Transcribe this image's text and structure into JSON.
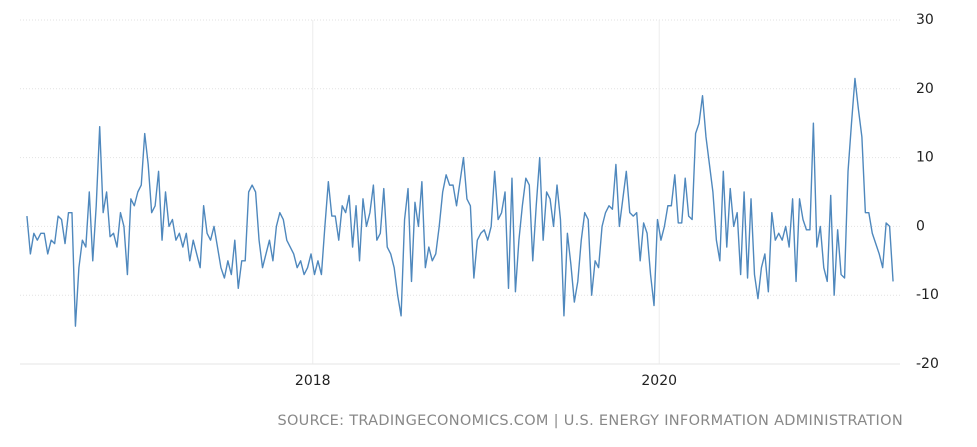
{
  "chart_data": {
    "type": "line",
    "color": "#4f88bd",
    "x": [
      2016.35,
      2016.37,
      2016.39,
      2016.41,
      2016.43,
      2016.45,
      2016.47,
      2016.49,
      2016.51,
      2016.53,
      2016.55,
      2016.57,
      2016.59,
      2016.61,
      2016.63,
      2016.65,
      2016.67,
      2016.69,
      2016.71,
      2016.73,
      2016.75,
      2016.77,
      2016.79,
      2016.81,
      2016.83,
      2016.85,
      2016.87,
      2016.89,
      2016.91,
      2016.93,
      2016.95,
      2016.97,
      2016.99,
      2017.01,
      2017.03,
      2017.05,
      2017.07,
      2017.09,
      2017.11,
      2017.13,
      2017.15,
      2017.17,
      2017.19,
      2017.21,
      2017.23,
      2017.25,
      2017.27,
      2017.29,
      2017.31,
      2017.33,
      2017.35,
      2017.37,
      2017.39,
      2017.41,
      2017.43,
      2017.45,
      2017.47,
      2017.49,
      2017.51,
      2017.53,
      2017.55,
      2017.57,
      2017.59,
      2017.61,
      2017.63,
      2017.65,
      2017.67,
      2017.69,
      2017.71,
      2017.73,
      2017.75,
      2017.77,
      2017.79,
      2017.81,
      2017.83,
      2017.85,
      2017.87,
      2017.89,
      2017.91,
      2017.93,
      2017.95,
      2017.97,
      2017.99,
      2018.01,
      2018.03,
      2018.05,
      2018.07,
      2018.09,
      2018.11,
      2018.13,
      2018.15,
      2018.17,
      2018.19,
      2018.21,
      2018.23,
      2018.25,
      2018.27,
      2018.29,
      2018.31,
      2018.33,
      2018.35,
      2018.37,
      2018.39,
      2018.41,
      2018.43,
      2018.45,
      2018.47,
      2018.49,
      2018.51,
      2018.53,
      2018.55,
      2018.57,
      2018.59,
      2018.61,
      2018.63,
      2018.65,
      2018.67,
      2018.69,
      2018.71,
      2018.73,
      2018.75,
      2018.77,
      2018.79,
      2018.81,
      2018.83,
      2018.85,
      2018.87,
      2018.89,
      2018.91,
      2018.93,
      2018.95,
      2018.97,
      2018.99,
      2019.01,
      2019.03,
      2019.05,
      2019.07,
      2019.09,
      2019.11,
      2019.13,
      2019.15,
      2019.17,
      2019.19,
      2019.21,
      2019.23,
      2019.25,
      2019.27,
      2019.29,
      2019.31,
      2019.33,
      2019.35,
      2019.37,
      2019.39,
      2019.41,
      2019.43,
      2019.45,
      2019.47,
      2019.49,
      2019.51,
      2019.53,
      2019.55,
      2019.57,
      2019.59,
      2019.61,
      2019.63,
      2019.65,
      2019.67,
      2019.69,
      2019.71,
      2019.73,
      2019.75,
      2019.77,
      2019.79,
      2019.81,
      2019.83,
      2019.85,
      2019.87,
      2019.89,
      2019.91,
      2019.93,
      2019.95,
      2019.97,
      2019.99,
      2020.01,
      2020.03,
      2020.05,
      2020.07,
      2020.09,
      2020.11,
      2020.13,
      2020.15,
      2020.17,
      2020.19,
      2020.21,
      2020.23,
      2020.25,
      2020.27,
      2020.29,
      2020.31,
      2020.33,
      2020.35,
      2020.37,
      2020.39,
      2020.41,
      2020.43,
      2020.45,
      2020.47,
      2020.49,
      2020.51,
      2020.53,
      2020.55,
      2020.57,
      2020.59,
      2020.61,
      2020.63,
      2020.65,
      2020.67,
      2020.69,
      2020.71,
      2020.73,
      2020.75,
      2020.77,
      2020.79,
      2020.81,
      2020.83,
      2020.85,
      2020.87,
      2020.89,
      2020.91,
      2020.93,
      2020.95,
      2020.97,
      2020.99,
      2021.01,
      2021.03,
      2021.05,
      2021.07,
      2021.09,
      2021.11,
      2021.13,
      2021.15,
      2021.17,
      2021.19,
      2021.21,
      2021.23,
      2021.25,
      2021.27,
      2021.29,
      2021.31,
      2021.33,
      2021.35
    ],
    "values": [
      1.5,
      -4,
      -1,
      -2,
      -1,
      -1,
      -4,
      -2,
      -2.5,
      1.5,
      1,
      -2.5,
      2,
      2,
      -14.5,
      -6,
      -2,
      -3,
      5,
      -5,
      3,
      14.5,
      2,
      5,
      -1.5,
      -1,
      -3,
      2,
      0,
      -7,
      4,
      3,
      5,
      6,
      13.5,
      9,
      2,
      3,
      8,
      -2,
      5,
      0,
      1,
      -2,
      -1,
      -3,
      -1,
      -5,
      -2,
      -4,
      -6,
      3,
      -1,
      -2,
      0,
      -3,
      -6,
      -7.5,
      -5,
      -7,
      -2,
      -9,
      -5,
      -5,
      5,
      6,
      5,
      -2,
      -6,
      -4,
      -2,
      -5,
      0,
      2,
      1,
      -2,
      -3,
      -4,
      -6,
      -5,
      -7,
      -6,
      -4,
      -7,
      -5,
      -7,
      0,
      6.5,
      1.5,
      1.5,
      -2,
      3,
      2,
      4.5,
      -3,
      3,
      -5,
      4,
      0,
      2,
      6,
      -2,
      -1,
      5.5,
      -3,
      -4,
      -6,
      -10,
      -13,
      1,
      5.5,
      -8,
      3.5,
      0,
      6.5,
      -6,
      -3,
      -5,
      -4,
      0,
      5,
      7.5,
      6,
      6,
      3,
      6.5,
      10,
      4,
      3,
      -7.5,
      -2,
      -1,
      -0.5,
      -2,
      0,
      8,
      1,
      2,
      5,
      -9,
      7,
      -9.5,
      -2,
      3,
      7,
      6,
      -5,
      3,
      10,
      -2,
      5,
      4,
      0,
      6,
      1,
      -13,
      -1,
      -5.5,
      -11,
      -8,
      -2,
      2,
      1,
      -10,
      -5,
      -6,
      0,
      2,
      3,
      2.5,
      9,
      0,
      4,
      8,
      2,
      1.5,
      2,
      -5,
      0.5,
      -1,
      -7,
      -11.5,
      1,
      -2,
      0,
      3,
      3,
      7.5,
      0.5,
      0.5,
      7,
      1.5,
      1,
      13.5,
      15,
      19,
      13,
      9,
      5,
      -2,
      -5,
      8,
      -3,
      5.5,
      0,
      2,
      -7,
      5,
      -7.5,
      4,
      -7,
      -10.5,
      -6,
      -4,
      -9.5,
      2,
      -2,
      -1,
      -2,
      0,
      -3,
      4,
      -8,
      4,
      1,
      -0.5,
      -0.5,
      15,
      -3,
      0,
      -6,
      -8,
      4.5,
      -10,
      -0.5,
      -7,
      -7.5,
      8,
      15,
      21.5,
      17,
      13,
      2,
      2,
      -1,
      -2.5,
      -4,
      -6,
      0.5,
      0,
      -8
    ],
    "xlim": [
      2016.31,
      2021.39
    ],
    "xticks": [
      2018,
      2020
    ],
    "ylim": [
      -20,
      30
    ],
    "yticks": [
      -20,
      -10,
      0,
      10,
      20,
      30
    ],
    "grid": true,
    "source": "SOURCE: TRADINGECONOMICS.COM | U.S. ENERGY INFORMATION ADMINISTRATION"
  }
}
